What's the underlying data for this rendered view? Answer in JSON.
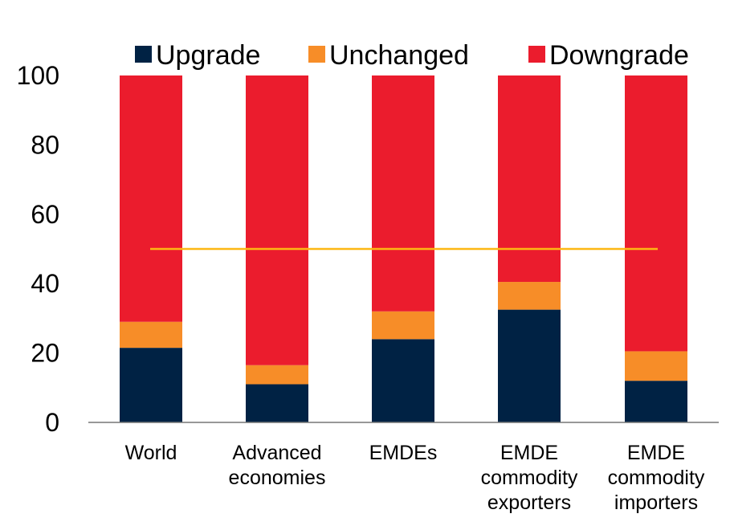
{
  "chart_data": {
    "type": "bar",
    "stacked": true,
    "title": "",
    "xlabel": "",
    "ylabel": "",
    "ylim": [
      0,
      100
    ],
    "yticks": [
      0,
      20,
      40,
      60,
      80,
      100
    ],
    "categories": [
      [
        "World"
      ],
      [
        "Advanced",
        "economies"
      ],
      [
        "EMDEs"
      ],
      [
        "EMDE",
        "commodity",
        "exporters"
      ],
      [
        "EMDE",
        "commodity",
        "importers"
      ]
    ],
    "series": [
      {
        "name": "Upgrade",
        "color": "#002244",
        "values": [
          21.5,
          11,
          24,
          32.5,
          12
        ]
      },
      {
        "name": "Unchanged",
        "color": "#F78D28",
        "values": [
          7.5,
          5.5,
          8,
          8,
          8.5
        ]
      },
      {
        "name": "Downgrade",
        "color": "#EB1C2D",
        "values": [
          71,
          83.5,
          68,
          59.5,
          79.5
        ]
      }
    ],
    "reference_line": {
      "value": 50,
      "color": "#FDB714"
    },
    "legend_position": "top",
    "grid": false
  }
}
